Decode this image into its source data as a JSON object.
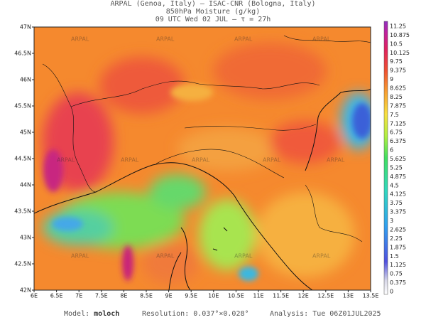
{
  "header": {
    "line1": "ARPAL (Genoa, Italy)  –  ISAC-CNR (Bologna, Italy)",
    "line2": "850hPa Moisture (g/kg)",
    "line3": "09 UTC Wed 02 JUL  –  τ = 27h"
  },
  "map": {
    "lat_labels": [
      "47N",
      "46.5N",
      "46N",
      "45.5N",
      "45N",
      "44.5N",
      "44N",
      "43.5N",
      "43N",
      "42.5N",
      "42N"
    ],
    "lon_labels": [
      "6E",
      "6.5E",
      "7E",
      "7.5E",
      "8E",
      "8.5E",
      "9E",
      "9.5E",
      "10E",
      "10.5E",
      "11E",
      "11.5E",
      "12E",
      "12.5E",
      "13E",
      "13.5E"
    ]
  },
  "colorbar": {
    "labels": [
      11.25,
      10.875,
      10.5,
      10.125,
      9.75,
      9.375,
      9,
      8.625,
      8.25,
      7.875,
      7.5,
      7.125,
      6.75,
      6.375,
      6,
      5.625,
      5.25,
      4.875,
      4.5,
      4.125,
      3.75,
      3.375,
      3,
      2.625,
      2.25,
      1.875,
      1.5,
      1.125,
      0.75,
      0.375,
      0
    ]
  },
  "footer": {
    "model_label": "Model:",
    "model": "moloch",
    "resolution": "Resolution: 0.037°×0.028°",
    "analysis": "Analysis: Tue 06Z01JUL2025"
  }
}
